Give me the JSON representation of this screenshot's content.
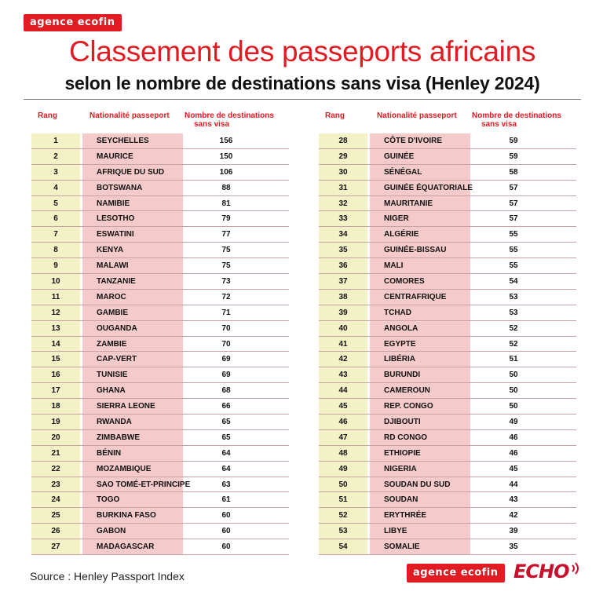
{
  "brand": {
    "logo_text": "agence ecofin",
    "echo_text": "ECHO"
  },
  "header": {
    "title": "Classement des passeports africains",
    "subtitle": "selon le nombre de destinations sans visa (Henley 2024)"
  },
  "table_headers": {
    "rank": "Rang",
    "nationality": "Nationalité passeport",
    "count_line1": "Nombre de destinations",
    "count_line2": "sans visa"
  },
  "source": "Source : Henley Passport Index",
  "colors": {
    "accent": "#e01b22",
    "rank_bg": "#f3f2c7",
    "name_bg": "#f4caca"
  },
  "chart_data": {
    "type": "table",
    "title": "Classement des passeports africains",
    "subtitle": "selon le nombre de destinations sans visa (Henley 2024)",
    "columns": [
      "Rang",
      "Nationalité passeport",
      "Nombre de destinations sans visa"
    ],
    "rows": [
      {
        "rank": "1",
        "country": "SEYCHELLES",
        "count": "156"
      },
      {
        "rank": "2",
        "country": "MAURICE",
        "count": "150"
      },
      {
        "rank": "3",
        "country": "AFRIQUE DU SUD",
        "count": "106"
      },
      {
        "rank": "4",
        "country": "BOTSWANA",
        "count": "88"
      },
      {
        "rank": "5",
        "country": "NAMIBIE",
        "count": "81"
      },
      {
        "rank": "6",
        "country": "LESOTHO",
        "count": "79"
      },
      {
        "rank": "7",
        "country": "ESWATINI",
        "count": "77"
      },
      {
        "rank": "8",
        "country": "KENYA",
        "count": "75"
      },
      {
        "rank": "9",
        "country": "MALAWI",
        "count": "75"
      },
      {
        "rank": "10",
        "country": "TANZANIE",
        "count": "73"
      },
      {
        "rank": "11",
        "country": "MAROC",
        "count": "72"
      },
      {
        "rank": "12",
        "country": "GAMBIE",
        "count": "71"
      },
      {
        "rank": "13",
        "country": "OUGANDA",
        "count": "70"
      },
      {
        "rank": "14",
        "country": "ZAMBIE",
        "count": "70"
      },
      {
        "rank": "15",
        "country": "CAP-VERT",
        "count": "69"
      },
      {
        "rank": "16",
        "country": "TUNISIE",
        "count": "69"
      },
      {
        "rank": "17",
        "country": "GHANA",
        "count": "68"
      },
      {
        "rank": "18",
        "country": "SIERRA LEONE",
        "count": "66"
      },
      {
        "rank": "19",
        "country": "RWANDA",
        "count": "65"
      },
      {
        "rank": "20",
        "country": "ZIMBABWE",
        "count": "65"
      },
      {
        "rank": "21",
        "country": "BÉNIN",
        "count": "64"
      },
      {
        "rank": "22",
        "country": "MOZAMBIQUE",
        "count": "64"
      },
      {
        "rank": "23",
        "country": "SAO TOMÉ-ET-PRINCIPE",
        "count": "63"
      },
      {
        "rank": "24",
        "country": "TOGO",
        "count": "61"
      },
      {
        "rank": "25",
        "country": "BURKINA FASO",
        "count": "60"
      },
      {
        "rank": "26",
        "country": "GABON",
        "count": "60"
      },
      {
        "rank": "27",
        "country": "MADAGASCAR",
        "count": "60"
      },
      {
        "rank": "28",
        "country": "CÔTE D'IVOIRE",
        "count": "59"
      },
      {
        "rank": "29",
        "country": "GUINÉE",
        "count": "59"
      },
      {
        "rank": "30",
        "country": "SÉNÉGAL",
        "count": "58"
      },
      {
        "rank": "31",
        "country": "GUINÉE ÉQUATORIALE",
        "count": "57"
      },
      {
        "rank": "32",
        "country": "MAURITANIE",
        "count": "57"
      },
      {
        "rank": "33",
        "country": "NIGER",
        "count": "57"
      },
      {
        "rank": "34",
        "country": "ALGÉRIE",
        "count": "55"
      },
      {
        "rank": "35",
        "country": "GUINÉE-BISSAU",
        "count": "55"
      },
      {
        "rank": "36",
        "country": "MALI",
        "count": "55"
      },
      {
        "rank": "37",
        "country": "COMORES",
        "count": "54"
      },
      {
        "rank": "38",
        "country": "CENTRAFRIQUE",
        "count": "53"
      },
      {
        "rank": "39",
        "country": "TCHAD",
        "count": "53"
      },
      {
        "rank": "40",
        "country": "ANGOLA",
        "count": "52"
      },
      {
        "rank": "41",
        "country": "EGYPTE",
        "count": "52"
      },
      {
        "rank": "42",
        "country": "LIBÉRIA",
        "count": "51"
      },
      {
        "rank": "43",
        "country": "BURUNDI",
        "count": "50"
      },
      {
        "rank": "44",
        "country": "CAMEROUN",
        "count": "50"
      },
      {
        "rank": "45",
        "country": "REP. CONGO",
        "count": "50"
      },
      {
        "rank": "46",
        "country": "DJIBOUTI",
        "count": "49"
      },
      {
        "rank": "47",
        "country": "RD CONGO",
        "count": "46"
      },
      {
        "rank": "48",
        "country": "ETHIOPIE",
        "count": "46"
      },
      {
        "rank": "49",
        "country": "NIGERIA",
        "count": "45"
      },
      {
        "rank": "50",
        "country": "SOUDAN DU SUD",
        "count": "44"
      },
      {
        "rank": "51",
        "country": "SOUDAN",
        "count": "43"
      },
      {
        "rank": "52",
        "country": "ERYTHRÉE",
        "count": "42"
      },
      {
        "rank": "53",
        "country": "LIBYE",
        "count": "39"
      },
      {
        "rank": "54",
        "country": "SOMALIE",
        "count": "35"
      }
    ]
  }
}
